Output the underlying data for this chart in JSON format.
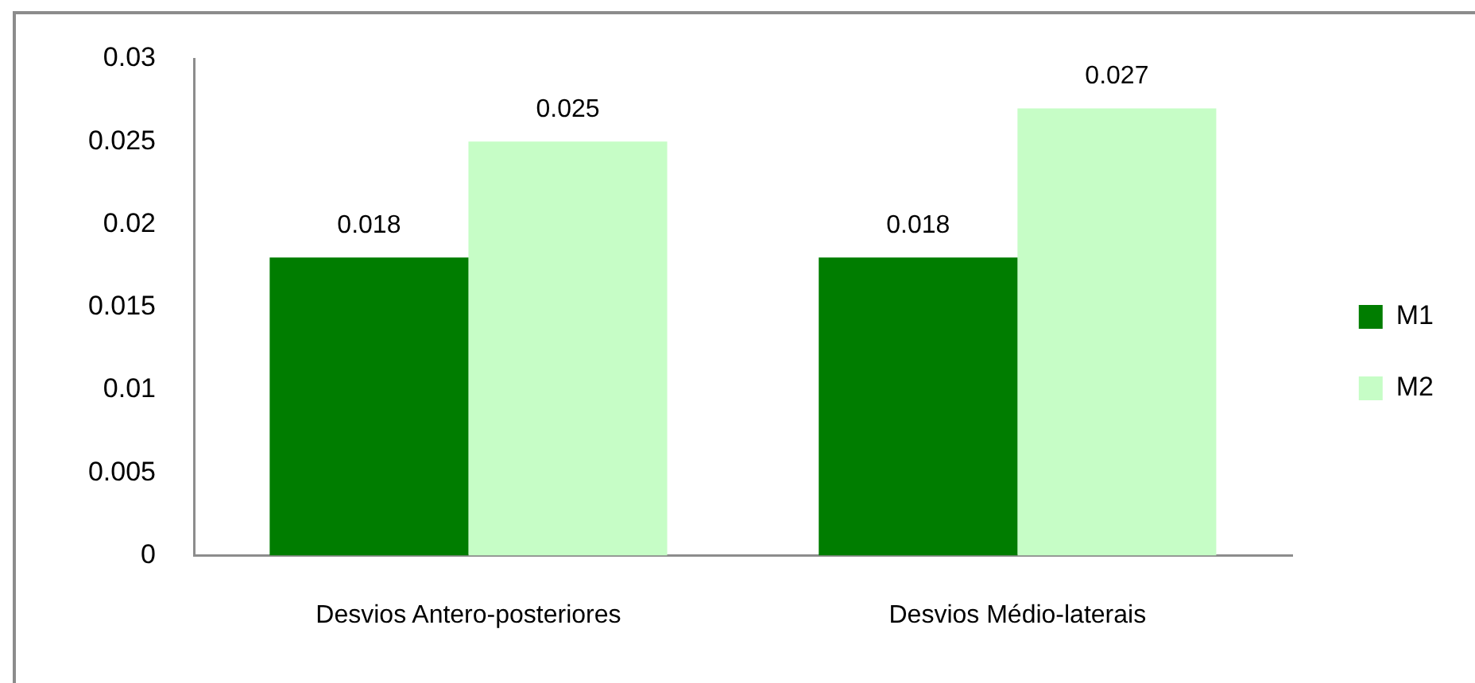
{
  "chart_data": {
    "type": "bar",
    "categories": [
      "Desvios Antero-posteriores",
      "Desvios Médio-laterais"
    ],
    "series": [
      {
        "name": "M1",
        "color": "#007d00",
        "values": [
          0.018,
          0.018
        ]
      },
      {
        "name": "M2",
        "color": "#c6fdc6",
        "values": [
          0.025,
          0.027
        ]
      }
    ],
    "ylim": [
      0,
      0.03
    ],
    "yticks": [
      0,
      0.005,
      0.01,
      0.015,
      0.02,
      0.025,
      0.03
    ],
    "grid": false,
    "legend": "right",
    "data_labels": true
  }
}
